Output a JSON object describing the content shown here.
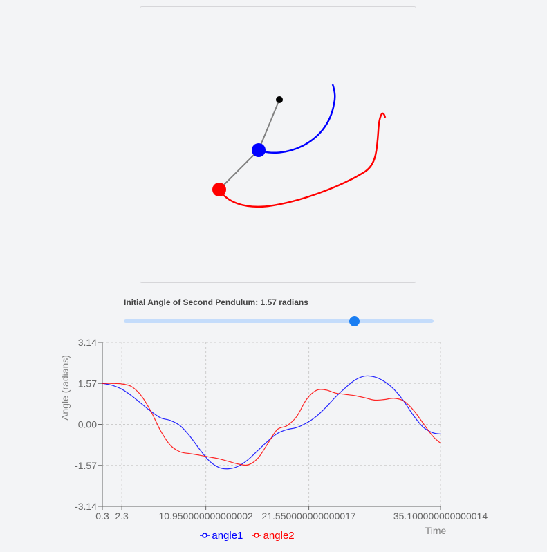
{
  "simulation": {
    "pivot_color": "#000000",
    "rod_color": "#808080",
    "bob1_color": "#0000ff",
    "bob2_color": "#ff0000"
  },
  "slider": {
    "label": "Initial Angle of Second Pendulum: 1.57 radians",
    "value": 1.57,
    "min": -3.14,
    "max": 3.14
  },
  "chart_data": {
    "type": "line",
    "xlabel": "Time",
    "ylabel": "Angle (radians)",
    "xlim": [
      0.3,
      35.1
    ],
    "ylim": [
      -3.14,
      3.14
    ],
    "x_ticks": [
      "0.3",
      "2.3",
      "10.950000000000002",
      "21.550000000000017",
      "35.100000000000014"
    ],
    "x_tick_values": [
      0.3,
      2.3,
      10.95,
      21.55,
      35.1
    ],
    "y_ticks": [
      "3.14",
      "1.57",
      "0.00",
      "-1.57",
      "-3.14"
    ],
    "y_tick_values": [
      3.14,
      1.57,
      0,
      -1.57,
      -3.14
    ],
    "grid": true,
    "legend_position": "bottom",
    "series": [
      {
        "name": "angle1",
        "color": "#0000ff",
        "x": [
          0.3,
          1.3,
          2.3,
          3.3,
          4.3,
          5.3,
          6.3,
          7.3,
          8.3,
          9.3,
          10.3,
          11.3,
          12.3,
          13.3,
          14.3,
          15.3,
          16.3,
          17.3,
          18.3,
          19.3,
          20.3,
          21.3,
          22.3,
          23.3,
          24.3,
          25.3,
          26.3,
          27.3,
          28.3,
          29.3,
          30.3,
          31.3,
          32.3,
          33.3,
          34.3,
          35.1
        ],
        "values": [
          1.57,
          1.5,
          1.35,
          1.1,
          0.8,
          0.5,
          0.25,
          0.15,
          -0.05,
          -0.45,
          -0.95,
          -1.4,
          -1.65,
          -1.7,
          -1.6,
          -1.35,
          -1.0,
          -0.65,
          -0.35,
          -0.2,
          -0.12,
          0.05,
          0.3,
          0.65,
          1.05,
          1.4,
          1.7,
          1.85,
          1.82,
          1.65,
          1.35,
          0.9,
          0.35,
          -0.1,
          -0.32,
          -0.37
        ]
      },
      {
        "name": "angle2",
        "color": "#ff0000",
        "x": [
          0.3,
          1.3,
          2.3,
          3.3,
          4.3,
          5.3,
          6.3,
          7.3,
          8.3,
          9.3,
          10.3,
          11.3,
          12.3,
          13.3,
          14.3,
          15.3,
          16.3,
          17.3,
          18.3,
          19.3,
          20.3,
          21.3,
          22.3,
          23.3,
          24.3,
          25.3,
          26.3,
          27.3,
          28.3,
          29.3,
          30.3,
          31.3,
          32.3,
          33.3,
          34.3,
          35.1
        ],
        "values": [
          1.57,
          1.57,
          1.55,
          1.45,
          1.1,
          0.5,
          -0.25,
          -0.8,
          -1.05,
          -1.12,
          -1.18,
          -1.25,
          -1.32,
          -1.42,
          -1.52,
          -1.55,
          -1.3,
          -0.75,
          -0.2,
          -0.05,
          0.3,
          0.95,
          1.3,
          1.32,
          1.2,
          1.15,
          1.1,
          1.02,
          0.93,
          0.95,
          1.0,
          0.9,
          0.55,
          0.05,
          -0.45,
          -0.72
        ]
      }
    ]
  }
}
